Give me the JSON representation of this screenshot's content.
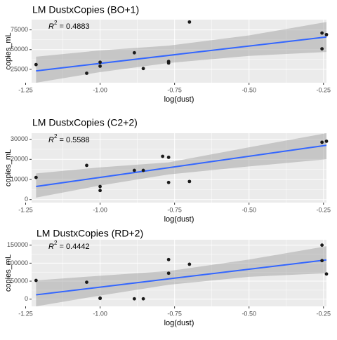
{
  "figure": {
    "background_color": "#ffffff",
    "panel_background": "#ebebeb",
    "grid_color": "#ffffff",
    "point_color": "#1a1a1a",
    "fit_line_color": "#3366ff",
    "ribbon_color": "#999999"
  },
  "chart_data": [
    {
      "type": "scatter",
      "title": "LM DustxCopies (BO+1)",
      "xlabel": "log(dust)",
      "ylabel": "copies_mL",
      "annotation": {
        "symbol": "R",
        "superscript": "2",
        "text": " = 0.4883"
      },
      "xlim": [
        -1.23,
        -0.24
      ],
      "ylim": [
        8000,
        88000
      ],
      "xticks": [
        -1.25,
        -1.0,
        -0.75,
        -0.5,
        -0.25
      ],
      "xtick_labels": [
        "-1.25",
        "-1.00",
        "-0.75",
        "-0.50",
        "-0.25"
      ],
      "yticks": [
        25000,
        50000,
        75000
      ],
      "ytick_labels": [
        "25000",
        "50000",
        "75000"
      ],
      "grid": true,
      "points": [
        {
          "x": -1.215,
          "y": 31000
        },
        {
          "x": -1.045,
          "y": 20000
        },
        {
          "x": -1.0,
          "y": 34000
        },
        {
          "x": -1.0,
          "y": 29000
        },
        {
          "x": -0.885,
          "y": 46000
        },
        {
          "x": -0.855,
          "y": 26000
        },
        {
          "x": -0.77,
          "y": 35000
        },
        {
          "x": -0.77,
          "y": 33000
        },
        {
          "x": -0.7,
          "y": 85000
        },
        {
          "x": -0.255,
          "y": 71000
        },
        {
          "x": -0.255,
          "y": 51000
        },
        {
          "x": -0.24,
          "y": 69000
        }
      ],
      "fit": {
        "x": [
          -1.215,
          -0.24
        ],
        "y": [
          23000,
          66000
        ]
      },
      "confidence_band": {
        "x": [
          -1.215,
          -1.0,
          -0.77,
          -0.5,
          -0.24
        ],
        "lower": [
          4000,
          21500,
          33000,
          42000,
          47000
        ],
        "upper": [
          41000,
          49000,
          55000,
          68000,
          85000
        ]
      }
    },
    {
      "type": "scatter",
      "title": "LM DustxCopies (C2+2)",
      "xlabel": "log(dust)",
      "ylabel": "copies_mL",
      "annotation": {
        "symbol": "R",
        "superscript": "2",
        "text": " = 0.5588"
      },
      "xlim": [
        -1.23,
        -0.24
      ],
      "ylim": [
        -1500,
        33000
      ],
      "xticks": [
        -1.25,
        -1.0,
        -0.75,
        -0.5,
        -0.25
      ],
      "xtick_labels": [
        "-1.25",
        "-1.00",
        "-0.75",
        "-0.50",
        "-0.25"
      ],
      "yticks": [
        0,
        10000,
        20000,
        30000
      ],
      "ytick_labels": [
        "0",
        "10000",
        "20000",
        "30000"
      ],
      "grid": true,
      "points": [
        {
          "x": -1.215,
          "y": 11000
        },
        {
          "x": -1.045,
          "y": 17000
        },
        {
          "x": -1.0,
          "y": 6500
        },
        {
          "x": -1.0,
          "y": 4500
        },
        {
          "x": -0.885,
          "y": 14500
        },
        {
          "x": -0.855,
          "y": 14500
        },
        {
          "x": -0.79,
          "y": 21500
        },
        {
          "x": -0.77,
          "y": 21000
        },
        {
          "x": -0.77,
          "y": 8500
        },
        {
          "x": -0.7,
          "y": 9000
        },
        {
          "x": -0.255,
          "y": 28500
        },
        {
          "x": -0.24,
          "y": 29000
        }
      ],
      "fit": {
        "x": [
          -1.215,
          -0.24
        ],
        "y": [
          6500,
          27000
        ]
      },
      "confidence_band": {
        "x": [
          -1.215,
          -1.0,
          -0.77,
          -0.5,
          -0.24
        ],
        "lower": [
          1000,
          7000,
          12500,
          16500,
          20000
        ],
        "upper": [
          13000,
          16000,
          18500,
          26000,
          34000
        ]
      }
    },
    {
      "type": "scatter",
      "title": "LM DustxCopies (RD+2)",
      "xlabel": "log(dust)",
      "ylabel": "copies_mL",
      "annotation": {
        "symbol": "R",
        "superscript": "2",
        "text": " = 0.4442"
      },
      "xlim": [
        -1.23,
        -0.24
      ],
      "ylim": [
        -20000,
        165000
      ],
      "xticks": [
        -1.25,
        -1.0,
        -0.75,
        -0.5,
        -0.25
      ],
      "xtick_labels": [
        "-1.25",
        "-1.00",
        "-0.75",
        "-0.50",
        "-0.25"
      ],
      "yticks": [
        0,
        50000,
        100000,
        150000
      ],
      "ytick_labels": [
        "0",
        "50000",
        "100000",
        "150000"
      ],
      "grid": true,
      "points": [
        {
          "x": -1.215,
          "y": 52000
        },
        {
          "x": -1.045,
          "y": 47000
        },
        {
          "x": -1.0,
          "y": 2000
        },
        {
          "x": -1.0,
          "y": 3000
        },
        {
          "x": -0.885,
          "y": 1000
        },
        {
          "x": -0.855,
          "y": 1000
        },
        {
          "x": -0.77,
          "y": 110000
        },
        {
          "x": -0.77,
          "y": 72000
        },
        {
          "x": -0.7,
          "y": 97000
        },
        {
          "x": -0.255,
          "y": 150000
        },
        {
          "x": -0.255,
          "y": 107000
        },
        {
          "x": -0.24,
          "y": 70000
        }
      ],
      "fit": {
        "x": [
          -1.215,
          -0.24
        ],
        "y": [
          12000,
          109000
        ]
      },
      "confidence_band": {
        "x": [
          -1.215,
          -1.0,
          -0.77,
          -0.5,
          -0.24
        ],
        "lower": [
          -30000,
          10000,
          40000,
          62000,
          72000
        ],
        "upper": [
          52000,
          65000,
          78000,
          110000,
          147000
        ]
      }
    }
  ]
}
